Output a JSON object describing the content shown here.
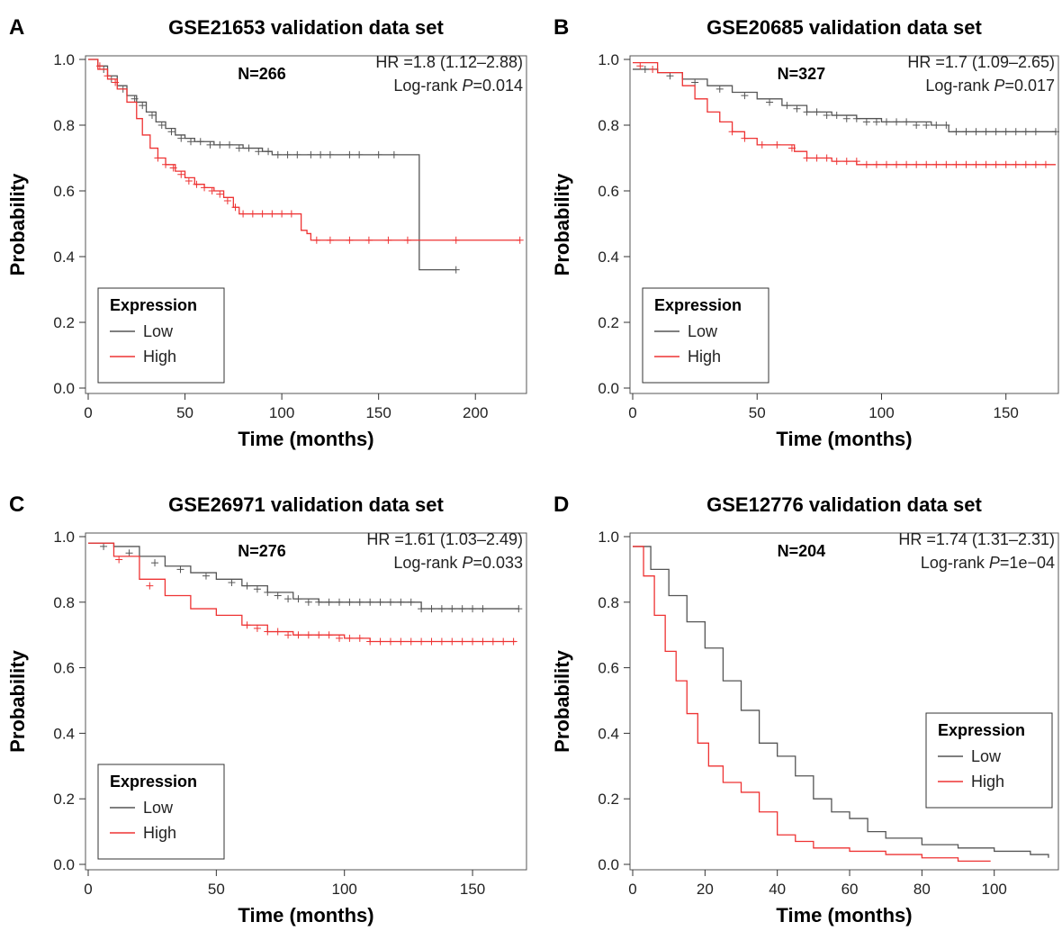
{
  "figure": {
    "panels_count": 4
  },
  "legend_title": "Expression",
  "chart_data": [
    {
      "panel": "A",
      "type": "line",
      "title": "GSE21653 validation data set",
      "xlabel": "Time (months)",
      "ylabel": "Probability",
      "n_label": "N=266",
      "hr_label": "HR =1.8 (1.12–2.88)",
      "logrank_prefix": "Log-rank ",
      "logrank_p_symbol": "P",
      "logrank_value": "=0.014",
      "xlim": [
        0,
        225
      ],
      "ylim": [
        0,
        1
      ],
      "xticks": [
        0,
        50,
        100,
        150,
        200
      ],
      "yticks": [
        0.0,
        0.2,
        0.4,
        0.6,
        0.8,
        1.0
      ],
      "legend_position": "bottom-left",
      "series": [
        {
          "name": "Low",
          "color": "#555555",
          "x": [
            0,
            5,
            10,
            15,
            20,
            25,
            30,
            35,
            40,
            45,
            50,
            55,
            60,
            65,
            70,
            75,
            80,
            85,
            90,
            95,
            100,
            110,
            120,
            130,
            140,
            150,
            160,
            171,
            171,
            190
          ],
          "y": [
            1.0,
            0.98,
            0.95,
            0.92,
            0.89,
            0.87,
            0.84,
            0.81,
            0.79,
            0.77,
            0.76,
            0.75,
            0.75,
            0.74,
            0.74,
            0.74,
            0.73,
            0.73,
            0.72,
            0.71,
            0.71,
            0.71,
            0.71,
            0.71,
            0.71,
            0.71,
            0.71,
            0.71,
            0.36,
            0.36
          ],
          "censor_x": [
            8,
            12,
            18,
            24,
            28,
            33,
            38,
            43,
            48,
            53,
            58,
            63,
            68,
            73,
            78,
            83,
            88,
            93,
            98,
            103,
            108,
            115,
            120,
            125,
            135,
            140,
            150,
            158,
            190
          ],
          "censor_y": [
            0.97,
            0.94,
            0.91,
            0.88,
            0.86,
            0.83,
            0.8,
            0.78,
            0.76,
            0.75,
            0.75,
            0.74,
            0.74,
            0.74,
            0.73,
            0.73,
            0.72,
            0.72,
            0.71,
            0.71,
            0.71,
            0.71,
            0.71,
            0.71,
            0.71,
            0.71,
            0.71,
            0.71,
            0.36
          ]
        },
        {
          "name": "High",
          "color": "#ee3333",
          "x": [
            0,
            5,
            10,
            15,
            20,
            25,
            28,
            32,
            36,
            40,
            45,
            50,
            55,
            60,
            65,
            70,
            75,
            78,
            80,
            90,
            100,
            110,
            113,
            115,
            120,
            150,
            223
          ],
          "y": [
            1.0,
            0.97,
            0.94,
            0.91,
            0.87,
            0.82,
            0.77,
            0.73,
            0.7,
            0.68,
            0.66,
            0.64,
            0.62,
            0.61,
            0.6,
            0.58,
            0.55,
            0.53,
            0.53,
            0.53,
            0.53,
            0.48,
            0.47,
            0.45,
            0.45,
            0.45,
            0.45
          ],
          "censor_x": [
            6,
            10,
            14,
            36,
            40,
            44,
            48,
            52,
            56,
            60,
            64,
            68,
            72,
            76,
            80,
            85,
            90,
            95,
            100,
            105,
            118,
            125,
            135,
            145,
            155,
            165,
            190,
            223
          ],
          "censor_y": [
            0.98,
            0.95,
            0.93,
            0.7,
            0.68,
            0.67,
            0.65,
            0.63,
            0.62,
            0.61,
            0.6,
            0.59,
            0.57,
            0.55,
            0.53,
            0.53,
            0.53,
            0.53,
            0.53,
            0.53,
            0.45,
            0.45,
            0.45,
            0.45,
            0.45,
            0.45,
            0.45,
            0.45
          ]
        }
      ]
    },
    {
      "panel": "B",
      "type": "line",
      "title": "GSE20685 validation data set",
      "xlabel": "Time (months)",
      "ylabel": "Probability",
      "n_label": "N=327",
      "hr_label": "HR =1.7 (1.09–2.65)",
      "logrank_prefix": "Log-rank ",
      "logrank_p_symbol": "P",
      "logrank_value": "=0.017",
      "xlim": [
        0,
        170
      ],
      "ylim": [
        0,
        1
      ],
      "xticks": [
        0,
        50,
        100,
        150
      ],
      "yticks": [
        0.0,
        0.2,
        0.4,
        0.6,
        0.8,
        1.0
      ],
      "legend_position": "bottom-left",
      "series": [
        {
          "name": "Low",
          "color": "#555555",
          "x": [
            0,
            10,
            20,
            30,
            40,
            50,
            60,
            70,
            80,
            90,
            100,
            110,
            120,
            127,
            127,
            170
          ],
          "y": [
            0.97,
            0.96,
            0.94,
            0.92,
            0.9,
            0.88,
            0.86,
            0.84,
            0.83,
            0.82,
            0.81,
            0.81,
            0.8,
            0.8,
            0.78,
            0.78
          ],
          "censor_x": [
            5,
            15,
            25,
            35,
            45,
            55,
            62,
            66,
            70,
            74,
            78,
            82,
            86,
            90,
            94,
            98,
            102,
            106,
            110,
            114,
            118,
            122,
            126,
            130,
            134,
            138,
            142,
            146,
            150,
            154,
            158,
            162,
            170
          ],
          "censor_y": [
            0.97,
            0.95,
            0.93,
            0.91,
            0.89,
            0.87,
            0.86,
            0.85,
            0.84,
            0.84,
            0.83,
            0.83,
            0.82,
            0.82,
            0.81,
            0.81,
            0.81,
            0.81,
            0.81,
            0.8,
            0.8,
            0.8,
            0.8,
            0.78,
            0.78,
            0.78,
            0.78,
            0.78,
            0.78,
            0.78,
            0.78,
            0.78,
            0.78
          ]
        },
        {
          "name": "High",
          "color": "#ee3333",
          "x": [
            0,
            10,
            20,
            25,
            30,
            35,
            40,
            45,
            50,
            55,
            60,
            65,
            70,
            80,
            90,
            100,
            170
          ],
          "y": [
            0.99,
            0.96,
            0.92,
            0.88,
            0.84,
            0.81,
            0.78,
            0.76,
            0.74,
            0.74,
            0.74,
            0.72,
            0.7,
            0.69,
            0.68,
            0.68,
            0.68
          ],
          "censor_x": [
            3,
            8,
            40,
            45,
            52,
            58,
            64,
            70,
            74,
            78,
            82,
            86,
            90,
            94,
            98,
            102,
            106,
            110,
            114,
            118,
            122,
            126,
            130,
            134,
            138,
            142,
            146,
            150,
            154,
            158,
            162,
            166
          ],
          "censor_y": [
            0.98,
            0.97,
            0.78,
            0.76,
            0.74,
            0.74,
            0.73,
            0.7,
            0.7,
            0.7,
            0.69,
            0.69,
            0.69,
            0.68,
            0.68,
            0.68,
            0.68,
            0.68,
            0.68,
            0.68,
            0.68,
            0.68,
            0.68,
            0.68,
            0.68,
            0.68,
            0.68,
            0.68,
            0.68,
            0.68,
            0.68,
            0.68
          ]
        }
      ]
    },
    {
      "panel": "C",
      "type": "line",
      "title": "GSE26971 validation data set",
      "xlabel": "Time (months)",
      "ylabel": "Probability",
      "n_label": "N=276",
      "hr_label": "HR =1.61 (1.03–2.49)",
      "logrank_prefix": "Log-rank ",
      "logrank_p_symbol": "P",
      "logrank_value": "=0.033",
      "xlim": [
        0,
        170
      ],
      "ylim": [
        0,
        1
      ],
      "xticks": [
        0,
        50,
        100,
        150
      ],
      "yticks": [
        0.0,
        0.2,
        0.4,
        0.6,
        0.8,
        1.0
      ],
      "legend_position": "bottom-left",
      "series": [
        {
          "name": "Low",
          "color": "#555555",
          "x": [
            0,
            10,
            20,
            30,
            40,
            50,
            60,
            70,
            80,
            90,
            100,
            110,
            120,
            130,
            140,
            150,
            160,
            168
          ],
          "y": [
            0.98,
            0.97,
            0.94,
            0.91,
            0.89,
            0.87,
            0.85,
            0.83,
            0.81,
            0.8,
            0.8,
            0.8,
            0.8,
            0.78,
            0.78,
            0.78,
            0.78,
            0.78
          ],
          "censor_x": [
            6,
            16,
            26,
            36,
            46,
            56,
            62,
            66,
            70,
            74,
            78,
            82,
            86,
            90,
            94,
            98,
            102,
            106,
            110,
            114,
            118,
            122,
            126,
            130,
            134,
            138,
            142,
            146,
            150,
            154,
            168
          ],
          "censor_y": [
            0.97,
            0.95,
            0.92,
            0.9,
            0.88,
            0.86,
            0.85,
            0.84,
            0.83,
            0.82,
            0.81,
            0.81,
            0.8,
            0.8,
            0.8,
            0.8,
            0.8,
            0.8,
            0.8,
            0.8,
            0.8,
            0.8,
            0.8,
            0.78,
            0.78,
            0.78,
            0.78,
            0.78,
            0.78,
            0.78,
            0.78
          ]
        },
        {
          "name": "High",
          "color": "#ee3333",
          "x": [
            0,
            10,
            20,
            30,
            40,
            50,
            60,
            70,
            80,
            90,
            100,
            110,
            120,
            167
          ],
          "y": [
            0.98,
            0.94,
            0.87,
            0.82,
            0.78,
            0.76,
            0.73,
            0.71,
            0.7,
            0.7,
            0.69,
            0.68,
            0.68,
            0.68
          ],
          "censor_x": [
            12,
            24,
            62,
            66,
            70,
            74,
            78,
            82,
            86,
            90,
            94,
            98,
            102,
            106,
            110,
            114,
            118,
            122,
            126,
            130,
            134,
            138,
            142,
            146,
            150,
            154,
            158,
            162,
            166
          ],
          "censor_y": [
            0.93,
            0.85,
            0.73,
            0.72,
            0.71,
            0.71,
            0.7,
            0.7,
            0.7,
            0.7,
            0.7,
            0.69,
            0.69,
            0.69,
            0.68,
            0.68,
            0.68,
            0.68,
            0.68,
            0.68,
            0.68,
            0.68,
            0.68,
            0.68,
            0.68,
            0.68,
            0.68,
            0.68,
            0.68
          ]
        }
      ]
    },
    {
      "panel": "D",
      "type": "line",
      "title": "GSE12776 validation data set",
      "xlabel": "Time (months)",
      "ylabel": "Probability",
      "n_label": "N=204",
      "hr_label": "HR =1.74 (1.31–2.31)",
      "logrank_prefix": "Log-rank ",
      "logrank_p_symbol": "P",
      "logrank_value": "=1e−04",
      "xlim": [
        0,
        117
      ],
      "ylim": [
        0,
        1
      ],
      "xticks": [
        0,
        20,
        40,
        60,
        80,
        100
      ],
      "yticks": [
        0.0,
        0.2,
        0.4,
        0.6,
        0.8,
        1.0
      ],
      "legend_position": "right",
      "series": [
        {
          "name": "Low",
          "color": "#555555",
          "x": [
            0,
            5,
            10,
            15,
            20,
            25,
            30,
            35,
            40,
            45,
            50,
            55,
            60,
            65,
            70,
            80,
            90,
            100,
            110,
            115
          ],
          "y": [
            0.97,
            0.9,
            0.82,
            0.74,
            0.66,
            0.56,
            0.47,
            0.37,
            0.33,
            0.27,
            0.2,
            0.16,
            0.14,
            0.1,
            0.08,
            0.06,
            0.05,
            0.04,
            0.03,
            0.02
          ],
          "censor_x": [],
          "censor_y": []
        },
        {
          "name": "High",
          "color": "#ee3333",
          "x": [
            0,
            3,
            6,
            9,
            12,
            15,
            18,
            21,
            25,
            30,
            35,
            40,
            45,
            50,
            60,
            70,
            80,
            90,
            99
          ],
          "y": [
            0.97,
            0.88,
            0.76,
            0.65,
            0.56,
            0.46,
            0.37,
            0.3,
            0.25,
            0.22,
            0.16,
            0.09,
            0.07,
            0.05,
            0.04,
            0.03,
            0.02,
            0.01,
            0.01
          ],
          "censor_x": [],
          "censor_y": []
        }
      ]
    }
  ]
}
